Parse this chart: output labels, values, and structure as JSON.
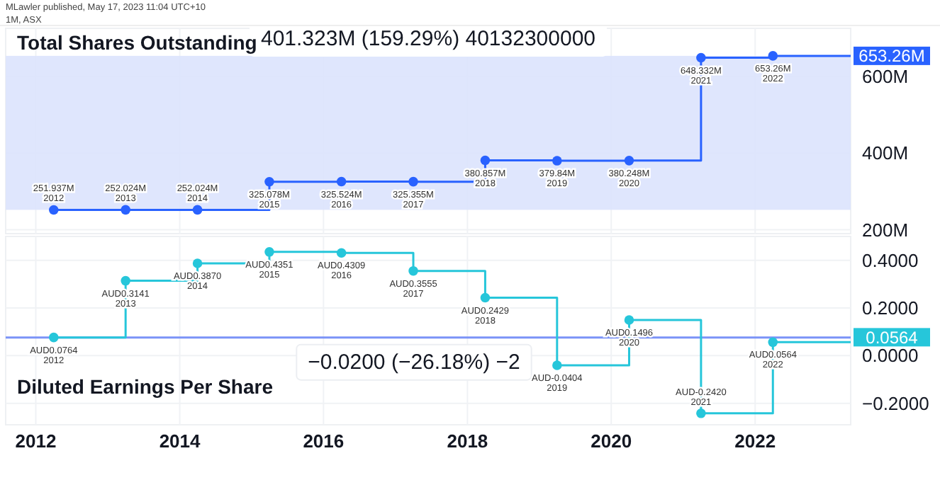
{
  "chart_data": [
    {
      "type": "step",
      "title": "Total Shares Outstanding",
      "x": [
        "2012-04",
        "2013-04",
        "2014-04",
        "2015-04",
        "2016-04",
        "2017-04",
        "2018-04",
        "2019-04",
        "2020-04",
        "2021-04",
        "2022-04"
      ],
      "series": [
        {
          "color": "#2962ff",
          "values": [
            251.937,
            252.024,
            252.024,
            325.078,
            325.524,
            325.355,
            380.857,
            379.84,
            380.248,
            648.332,
            653.26
          ],
          "value_labels": [
            "251.937M",
            "252.024M",
            "252.024M",
            "325.078M",
            "325.524M",
            "325.355M",
            "380.857M",
            "379.84M",
            "380.248M",
            "648.332M",
            "653.26M"
          ]
        }
      ],
      "xlim": [
        "2011-08",
        "2023-05"
      ],
      "ylim": [
        190,
        725
      ],
      "xticks": [
        "2012",
        "2014",
        "2016",
        "2018",
        "2020",
        "2022"
      ],
      "yticks": [
        {
          "value": 200,
          "label": "200M"
        },
        {
          "value": 400,
          "label": "400M"
        },
        {
          "value": 600,
          "label": "600M"
        }
      ],
      "tick_labels": "y",
      "grid": true,
      "marker": "circle",
      "line_style": "solid",
      "bands": [
        {
          "axis": "y",
          "from": 251.937,
          "to": 653.26,
          "label": "401.323M (159.29%) 40132300000",
          "color": "#dbe3fd"
        }
      ],
      "annotations": [
        "MLawler published, May 17, 2023 11:04 UTC+10",
        "1M, ASX",
        {
          "text": "2012",
          "x": "2012-04",
          "y": 251.937
        },
        {
          "text": "2013",
          "x": "2013-04",
          "y": 252.024
        },
        {
          "text": "2014",
          "x": "2014-04",
          "y": 252.024
        },
        {
          "text": "2015",
          "x": "2015-04",
          "y": 325.078
        },
        {
          "text": "2016",
          "x": "2016-04",
          "y": 325.524
        },
        {
          "text": "2017",
          "x": "2017-04",
          "y": 325.355
        },
        {
          "text": "2018",
          "x": "2018-04",
          "y": 380.857
        },
        {
          "text": "2019",
          "x": "2019-04",
          "y": 379.84
        },
        {
          "text": "2020",
          "x": "2020-04",
          "y": 380.248
        },
        {
          "text": "2021",
          "x": "2021-04",
          "y": 648.332
        },
        {
          "text": "2022",
          "x": "2022-04",
          "y": 653.26
        },
        {
          "text": "653.26M",
          "x": "2023-05",
          "y": 653.26
        }
      ]
    },
    {
      "type": "step",
      "title": "Diluted Earnings Per Share",
      "x": [
        "2012-04",
        "2013-04",
        "2014-04",
        "2015-04",
        "2016-04",
        "2017-04",
        "2018-04",
        "2019-04",
        "2020-04",
        "2021-04",
        "2022-04"
      ],
      "series": [
        {
          "color": "#26c6da",
          "values": [
            0.0764,
            0.3141,
            0.387,
            0.4351,
            0.4309,
            0.3555,
            0.2429,
            -0.0404,
            0.1496,
            -0.242,
            0.0564
          ],
          "value_labels": [
            "AUD0.0764",
            "AUD0.3141",
            "AUD0.3870",
            "AUD0.4351",
            "AUD0.4309",
            "AUD0.3555",
            "AUD0.2429",
            "AUD-0.0404",
            "AUD0.1496",
            "AUD-0.2420",
            "AUD0.0564"
          ]
        }
      ],
      "xlim": [
        "2011-08",
        "2023-05"
      ],
      "ylim": [
        -0.29,
        0.5
      ],
      "xticks": [
        "2012",
        "2014",
        "2016",
        "2018",
        "2020",
        "2022"
      ],
      "yticks": [
        {
          "value": -0.2,
          "label": "−0.2000"
        },
        {
          "value": 0,
          "label": "0.0000"
        },
        {
          "value": 0.2,
          "label": "0.2000"
        },
        {
          "value": 0.4,
          "label": "0.4000"
        }
      ],
      "grid": true,
      "marker": "circle",
      "line_style": "solid",
      "ref_lines": [
        {
          "axis": "y",
          "value": 0.0764,
          "label": "−0.0200 (−26.18%) −2",
          "color": "#7b93f7"
        }
      ],
      "annotations": [
        {
          "text": "2012",
          "x": "2012-04",
          "y": 0.0764
        },
        {
          "text": "2013",
          "x": "2013-04",
          "y": 0.3141
        },
        {
          "text": "2014",
          "x": "2014-04",
          "y": 0.387
        },
        {
          "text": "2015",
          "x": "2015-04",
          "y": 0.4351
        },
        {
          "text": "2016",
          "x": "2016-04",
          "y": 0.4309
        },
        {
          "text": "2017",
          "x": "2017-04",
          "y": 0.3555
        },
        {
          "text": "2018",
          "x": "2018-04",
          "y": 0.2429
        },
        {
          "text": "2019",
          "x": "2019-04",
          "y": -0.0404
        },
        {
          "text": "2020",
          "x": "2020-04",
          "y": 0.1496
        },
        {
          "text": "2021",
          "x": "2021-04",
          "y": -0.242
        },
        {
          "text": "2022",
          "x": "2022-04",
          "y": 0.0564
        },
        {
          "text": "0.0564",
          "x": "2023-05",
          "y": 0.0564
        }
      ]
    }
  ]
}
